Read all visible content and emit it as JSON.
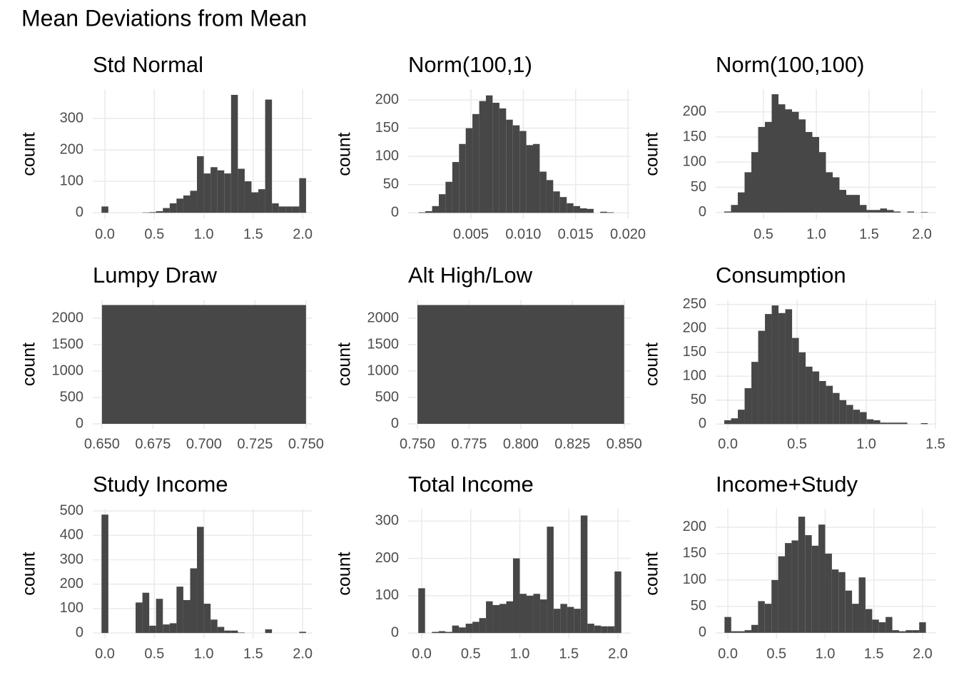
{
  "title": "Mean Deviations from Mean",
  "chart_data": [
    {
      "type": "histogram",
      "title": "Std Normal",
      "y_label": "count",
      "color": "#474747",
      "grid": true,
      "bins": [
        -0.0345,
        0.0345,
        0.1034,
        0.1724,
        0.2414,
        0.3103,
        0.3793,
        0.4483,
        0.5172,
        0.5862,
        0.6552,
        0.7241,
        0.7931,
        0.8621,
        0.931,
        1.0,
        1.069,
        1.1379,
        1.2069,
        1.2759,
        1.3448,
        1.4138,
        1.4828,
        1.5517,
        1.6207,
        1.6897,
        1.7586,
        1.8276,
        1.8966,
        1.9655,
        2.0345
      ],
      "values": [
        20,
        0,
        0,
        0,
        0,
        0,
        1,
        2,
        5,
        15,
        30,
        45,
        55,
        70,
        180,
        125,
        145,
        135,
        125,
        375,
        140,
        100,
        65,
        75,
        360,
        30,
        20,
        20,
        20,
        110
      ],
      "xlim": [
        -0.123,
        2.1
      ],
      "ylim": [
        -20,
        393
      ],
      "xticks": [
        {
          "value": 0,
          "label": "0.0"
        },
        0.5,
        {
          "value": 1,
          "label": "1.0"
        },
        1.5,
        {
          "value": 2,
          "label": "2.0"
        }
      ],
      "yticks": [
        0,
        100,
        200,
        300
      ]
    },
    {
      "type": "histogram",
      "title": "Norm(100,1)",
      "y_label": "count",
      "color": "#474747",
      "grid": true,
      "bins": [
        0.0,
        0.00064,
        0.00129,
        0.00193,
        0.00257,
        0.00322,
        0.00386,
        0.0045,
        0.00514,
        0.00579,
        0.00643,
        0.00707,
        0.00772,
        0.00836,
        0.009,
        0.00965,
        0.01029,
        0.01093,
        0.01157,
        0.01222,
        0.01286,
        0.0135,
        0.01415,
        0.01479,
        0.01543,
        0.01608,
        0.01672,
        0.01736,
        0.018,
        0.01865,
        0.01929
      ],
      "values": [
        1,
        3,
        12,
        33,
        55,
        90,
        122,
        150,
        175,
        198,
        208,
        195,
        185,
        165,
        155,
        145,
        120,
        122,
        73,
        58,
        38,
        28,
        17,
        12,
        8,
        7,
        0,
        2,
        1,
        0
      ],
      "xlim": [
        -0.001,
        0.02027
      ],
      "ylim": [
        -11,
        219
      ],
      "xticks": [
        0.005,
        {
          "value": 0.01,
          "label": "0.010"
        },
        0.015,
        {
          "value": 0.02,
          "label": "0.020"
        }
      ],
      "yticks": [
        0,
        50,
        100,
        150,
        200
      ]
    },
    {
      "type": "histogram",
      "title": "Norm(100,100)",
      "y_label": "count",
      "color": "#474747",
      "grid": true,
      "bins": [
        0.128,
        0.1922,
        0.2564,
        0.3206,
        0.3848,
        0.449,
        0.5132,
        0.5774,
        0.6416,
        0.7058,
        0.77,
        0.8342,
        0.8984,
        0.9626,
        1.0268,
        1.091,
        1.1552,
        1.2194,
        1.2836,
        1.3478,
        1.412,
        1.4762,
        1.5404,
        1.6046,
        1.6688,
        1.733,
        1.7972,
        1.8614,
        1.9256,
        1.9898,
        2.054
      ],
      "values": [
        2,
        15,
        40,
        80,
        120,
        170,
        180,
        235,
        215,
        205,
        200,
        185,
        160,
        150,
        120,
        80,
        70,
        45,
        35,
        35,
        15,
        5,
        5,
        8,
        5,
        2,
        0,
        2,
        0,
        1
      ],
      "xlim": [
        0.047,
        2.135
      ],
      "ylim": [
        -13,
        245
      ],
      "xticks": [
        0.5,
        {
          "value": 1,
          "label": "1.0"
        },
        1.5,
        {
          "value": 2,
          "label": "2.0"
        }
      ],
      "yticks": [
        0,
        50,
        100,
        150,
        200
      ]
    },
    {
      "type": "histogram",
      "title": "Lumpy Draw",
      "y_label": "count",
      "color": "#474747",
      "grid": true,
      "bins": [
        0.65,
        0.75
      ],
      "values": [
        2250
      ],
      "xlim": [
        0.6455,
        0.7532
      ],
      "ylim": [
        -95,
        2351
      ],
      "xticks": [
        {
          "value": 0.65,
          "label": "0.650"
        },
        0.675,
        {
          "value": 0.7,
          "label": "0.700"
        },
        0.725,
        {
          "value": 0.75,
          "label": "0.750"
        }
      ],
      "yticks": [
        0,
        500,
        1000,
        1500,
        2000
      ]
    },
    {
      "type": "histogram",
      "title": "Alt High/Low",
      "y_label": "count",
      "color": "#474747",
      "grid": true,
      "bins": [
        0.75,
        0.85
      ],
      "values": [
        2250
      ],
      "xlim": [
        0.7455,
        0.8532
      ],
      "ylim": [
        -95,
        2351
      ],
      "xticks": [
        {
          "value": 0.75,
          "label": "0.750"
        },
        0.775,
        {
          "value": 0.8,
          "label": "0.800"
        },
        0.825,
        {
          "value": 0.85,
          "label": "0.850"
        }
      ],
      "yticks": [
        0,
        500,
        1000,
        1500,
        2000
      ]
    },
    {
      "type": "histogram",
      "title": "Consumption",
      "y_label": "count",
      "color": "#474747",
      "grid": true,
      "bins": [
        -0.026,
        0.023,
        0.072,
        0.121,
        0.17,
        0.219,
        0.268,
        0.317,
        0.366,
        0.415,
        0.464,
        0.513,
        0.562,
        0.611,
        0.66,
        0.709,
        0.758,
        0.807,
        0.856,
        0.905,
        0.954,
        1.003,
        1.052,
        1.101,
        1.15,
        1.199,
        1.248,
        1.297,
        1.346,
        1.395,
        1.444
      ],
      "values": [
        8,
        12,
        30,
        75,
        130,
        195,
        230,
        248,
        232,
        240,
        180,
        150,
        120,
        110,
        90,
        80,
        65,
        50,
        40,
        30,
        25,
        10,
        8,
        3,
        3,
        3,
        3,
        0,
        0,
        2
      ],
      "xlim": [
        -0.088,
        1.505
      ],
      "ylim": [
        -10,
        260
      ],
      "xticks": [
        {
          "value": 0,
          "label": "0.0"
        },
        0.5,
        {
          "value": 1,
          "label": "1.0"
        },
        1.5
      ],
      "yticks": [
        0,
        50,
        100,
        150,
        200,
        250
      ]
    },
    {
      "type": "histogram",
      "title": "Study Income",
      "y_label": "count",
      "color": "#474747",
      "grid": true,
      "bins": [
        -0.0345,
        0.0345,
        0.1034,
        0.1724,
        0.2414,
        0.3103,
        0.3793,
        0.4483,
        0.5172,
        0.5862,
        0.6552,
        0.7241,
        0.7931,
        0.8621,
        0.931,
        1.0,
        1.069,
        1.1379,
        1.2069,
        1.2759,
        1.3448,
        1.4138,
        1.4828,
        1.5517,
        1.6207,
        1.6897,
        1.7586,
        1.8276,
        1.8966,
        1.9655,
        2.0345
      ],
      "values": [
        485,
        0,
        0,
        0,
        0,
        125,
        165,
        30,
        140,
        35,
        40,
        190,
        135,
        265,
        435,
        120,
        55,
        25,
        10,
        10,
        2,
        0,
        0,
        0,
        15,
        0,
        0,
        0,
        0,
        5
      ],
      "xlim": [
        -0.123,
        2.1
      ],
      "ylim": [
        -23,
        509
      ],
      "xticks": [
        {
          "value": 0,
          "label": "0.0"
        },
        0.5,
        {
          "value": 1,
          "label": "1.0"
        },
        1.5,
        {
          "value": 2,
          "label": "2.0"
        }
      ],
      "yticks": [
        0,
        100,
        200,
        300,
        400,
        500
      ]
    },
    {
      "type": "histogram",
      "title": "Total Income",
      "y_label": "count",
      "color": "#474747",
      "grid": true,
      "bins": [
        -0.0345,
        0.0345,
        0.1034,
        0.1724,
        0.2414,
        0.3103,
        0.3793,
        0.4483,
        0.5172,
        0.5862,
        0.6552,
        0.7241,
        0.7931,
        0.8621,
        0.931,
        1.0,
        1.069,
        1.1379,
        1.2069,
        1.2759,
        1.3448,
        1.4138,
        1.4828,
        1.5517,
        1.6207,
        1.6897,
        1.7586,
        1.8276,
        1.8966,
        1.9655,
        2.0345
      ],
      "values": [
        120,
        0,
        3,
        5,
        3,
        20,
        15,
        25,
        30,
        40,
        85,
        75,
        78,
        85,
        200,
        105,
        100,
        105,
        90,
        285,
        65,
        78,
        70,
        65,
        315,
        25,
        20,
        18,
        18,
        165
      ],
      "xlim": [
        -0.138,
        2.131
      ],
      "ylim": [
        -15,
        333
      ],
      "xticks": [
        {
          "value": 0,
          "label": "0.0"
        },
        0.5,
        {
          "value": 1,
          "label": "1.0"
        },
        1.5,
        {
          "value": 2,
          "label": "2.0"
        }
      ],
      "yticks": [
        0,
        100,
        200,
        300
      ]
    },
    {
      "type": "histogram",
      "title": "Income+Study",
      "y_label": "count",
      "color": "#474747",
      "grid": true,
      "bins": [
        -0.0345,
        0.0345,
        0.1034,
        0.1724,
        0.2414,
        0.3103,
        0.3793,
        0.4483,
        0.5172,
        0.5862,
        0.6552,
        0.7241,
        0.7931,
        0.8621,
        0.931,
        1.0,
        1.069,
        1.1379,
        1.2069,
        1.2759,
        1.3448,
        1.4138,
        1.4828,
        1.5517,
        1.6207,
        1.6897,
        1.7586,
        1.8276,
        1.8966,
        1.9655,
        2.0345
      ],
      "values": [
        30,
        3,
        3,
        5,
        15,
        60,
        55,
        100,
        145,
        170,
        175,
        220,
        185,
        165,
        205,
        150,
        120,
        115,
        80,
        55,
        105,
        45,
        25,
        20,
        30,
        5,
        3,
        5,
        5,
        20
      ],
      "xlim": [
        -0.125,
        2.14
      ],
      "ylim": [
        -11,
        235
      ],
      "xticks": [
        {
          "value": 0,
          "label": "0.0"
        },
        0.5,
        {
          "value": 1,
          "label": "1.0"
        },
        1.5,
        {
          "value": 2,
          "label": "2.0"
        }
      ],
      "yticks": [
        0,
        50,
        100,
        150,
        200
      ]
    }
  ]
}
